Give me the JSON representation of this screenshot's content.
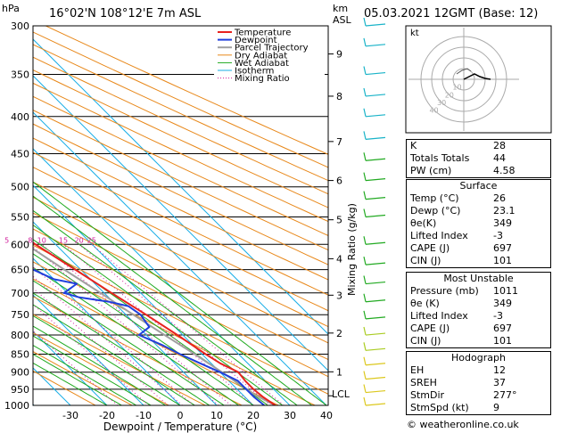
{
  "header": {
    "hpa_label": "hPa",
    "location": "16°02'N  108°12'E  7m  ASL",
    "km_label": "km",
    "asl_label": "ASL",
    "date": "05.03.2021  12GMT  (Base: 12)"
  },
  "chart_data": {
    "type": "line",
    "subtype": "skew-t log-p",
    "xlabel": "Dewpoint / Temperature (°C)",
    "ylabel": "hPa",
    "right_axis_label": "Mixing Ratio (g/kg)",
    "pressure_ticks": [
      300,
      350,
      400,
      450,
      500,
      550,
      600,
      650,
      700,
      750,
      800,
      850,
      900,
      950,
      1000
    ],
    "temp_ticks": [
      -30,
      -20,
      -10,
      0,
      10,
      20,
      30,
      40
    ],
    "km_ticks": [
      {
        "km": "1",
        "p": 899
      },
      {
        "km": "2",
        "p": 795
      },
      {
        "km": "3",
        "p": 705
      },
      {
        "km": "4",
        "p": 628
      },
      {
        "km": "5",
        "p": 555
      },
      {
        "km": "6",
        "p": 490
      },
      {
        "km": "7",
        "p": 433
      },
      {
        "km": "8",
        "p": 375
      },
      {
        "km": "9",
        "p": 328
      }
    ],
    "lcl_label": "LCL",
    "lcl_p": 970,
    "mixing_ratio_labels": [
      "1",
      "2",
      "3",
      "4",
      "5",
      "8",
      "10",
      "15",
      "20",
      "25"
    ],
    "legend": [
      "Temperature",
      "Dewpoint",
      "Parcel Trajectory",
      "Dry Adiabat",
      "Wet Adiabat",
      "Isotherm",
      "Mixing Ratio"
    ],
    "colors": {
      "temperature": "#e8221f",
      "dewpoint": "#1f3fdd",
      "parcel": "#a0a0a0",
      "dry_adiabat": "#e8881a",
      "wet_adiabat": "#1faa1f",
      "isotherm": "#19aee6",
      "mixing_ratio": "#d01a9a"
    },
    "temperature": [
      [
        1000,
        26
      ],
      [
        975,
        25
      ],
      [
        950,
        24.5
      ],
      [
        925,
        24.5
      ],
      [
        900,
        25
      ],
      [
        875,
        22.5
      ],
      [
        850,
        21
      ],
      [
        800,
        18.5
      ],
      [
        750,
        15.5
      ],
      [
        700,
        12
      ],
      [
        650,
        8.5
      ],
      [
        600,
        4.5
      ],
      [
        575,
        3
      ],
      [
        550,
        0
      ],
      [
        525,
        -1.5
      ],
      [
        500,
        -4
      ],
      [
        475,
        -6.5
      ],
      [
        450,
        -9.5
      ],
      [
        425,
        -13
      ],
      [
        400,
        -16.5
      ],
      [
        375,
        -21
      ],
      [
        360,
        -24
      ]
    ],
    "dewpoint": [
      [
        1000,
        23
      ],
      [
        975,
        22.5
      ],
      [
        950,
        22.5
      ],
      [
        925,
        22.5
      ],
      [
        900,
        20
      ],
      [
        875,
        17
      ],
      [
        850,
        14
      ],
      [
        825,
        11.5
      ],
      [
        800,
        8
      ],
      [
        780,
        13
      ],
      [
        750,
        14
      ],
      [
        730,
        13
      ],
      [
        720,
        9
      ],
      [
        710,
        2
      ],
      [
        700,
        -1
      ],
      [
        690,
        2
      ],
      [
        680,
        5
      ],
      [
        670,
        0
      ],
      [
        650,
        -3
      ],
      [
        625,
        -5
      ],
      [
        600,
        -3
      ],
      [
        590,
        2
      ],
      [
        575,
        -2
      ],
      [
        565,
        3
      ],
      [
        555,
        -2
      ],
      [
        540,
        -9
      ],
      [
        530,
        -4
      ],
      [
        515,
        -9
      ],
      [
        505,
        0
      ],
      [
        495,
        -5
      ],
      [
        485,
        -10
      ],
      [
        470,
        -8
      ],
      [
        460,
        -5
      ],
      [
        450,
        -10
      ],
      [
        440,
        -11
      ],
      [
        420,
        -20
      ],
      [
        400,
        -18
      ],
      [
        390,
        -30
      ],
      [
        370,
        -30
      ],
      [
        350,
        -50
      ],
      [
        325,
        -54
      ],
      [
        300,
        -56
      ]
    ],
    "parcel": [
      [
        1000,
        26
      ],
      [
        970,
        23.5
      ],
      [
        900,
        20.5
      ],
      [
        850,
        18
      ],
      [
        800,
        15
      ],
      [
        750,
        12
      ],
      [
        700,
        9
      ],
      [
        650,
        5.5
      ],
      [
        600,
        2
      ],
      [
        550,
        -2
      ],
      [
        500,
        -6.5
      ],
      [
        450,
        -12
      ],
      [
        400,
        -18.5
      ],
      [
        360,
        -24
      ]
    ]
  },
  "hodograph": {
    "label": "kt",
    "ring_labels": [
      "10",
      "20",
      "30",
      "40"
    ]
  },
  "wind_colors": {
    "upper": "#19b3c8",
    "mid": "#22aa22",
    "low": "#aacc22",
    "surface": "#dcc81e"
  },
  "indices": {
    "rows": [
      {
        "label": "K",
        "value": "28"
      },
      {
        "label": "Totals Totals",
        "value": "44"
      },
      {
        "label": "PW (cm)",
        "value": "4.58"
      }
    ]
  },
  "surface": {
    "title": "Surface",
    "rows": [
      {
        "label": "Temp (°C)",
        "value": "26"
      },
      {
        "label": "Dewp (°C)",
        "value": "23.1"
      },
      {
        "label": "θe(K)",
        "value": "349"
      },
      {
        "label": "Lifted Index",
        "value": "-3"
      },
      {
        "label": "CAPE (J)",
        "value": "697"
      },
      {
        "label": "CIN (J)",
        "value": "101"
      }
    ]
  },
  "most_unstable": {
    "title": "Most Unstable",
    "rows": [
      {
        "label": "Pressure (mb)",
        "value": "1011"
      },
      {
        "label": "θe (K)",
        "value": "349"
      },
      {
        "label": "Lifted Index",
        "value": "-3"
      },
      {
        "label": "CAPE (J)",
        "value": "697"
      },
      {
        "label": "CIN (J)",
        "value": "101"
      }
    ]
  },
  "hodograph_table": {
    "title": "Hodograph",
    "rows": [
      {
        "label": "EH",
        "value": "12"
      },
      {
        "label": "SREH",
        "value": "37"
      },
      {
        "label": "StmDir",
        "value": "277°"
      },
      {
        "label": "StmSpd (kt)",
        "value": "9"
      }
    ]
  },
  "footer": {
    "copyright": "© weatheronline.co.uk"
  }
}
